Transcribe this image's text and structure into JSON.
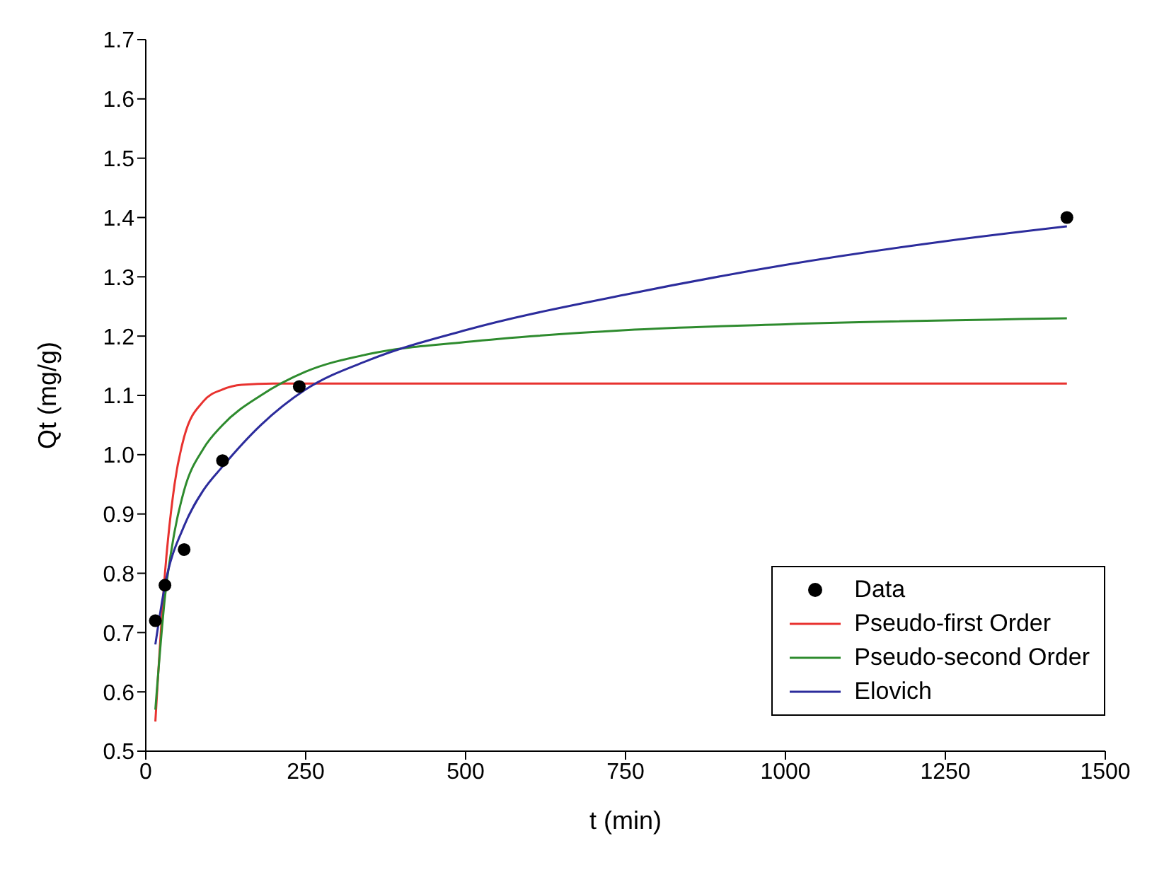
{
  "chart_data": {
    "type": "line",
    "xlabel": "t (min)",
    "ylabel": "Qt (mg/g)",
    "xlim": [
      0,
      1500
    ],
    "xticks": [
      0,
      250,
      500,
      750,
      1000,
      1250,
      1500
    ],
    "ylim": [
      0.5,
      1.7
    ],
    "yticks": [
      {
        "value": 0.5,
        "label": "0.5"
      },
      {
        "value": 0.6,
        "label": "0.6"
      },
      {
        "value": 0.7,
        "label": "0.7"
      },
      {
        "value": 0.8,
        "label": "0.8"
      },
      {
        "value": 0.9,
        "label": "0.9"
      },
      {
        "value": 1.0,
        "label": "1.0"
      },
      {
        "value": 1.1,
        "label": "1.1"
      },
      {
        "value": 1.2,
        "label": "1.2"
      },
      {
        "value": 1.3,
        "label": "1.3"
      },
      {
        "value": 1.4,
        "label": "1.4"
      },
      {
        "value": 1.5,
        "label": "1.5"
      },
      {
        "value": 1.6,
        "label": "1.6"
      },
      {
        "value": 1.7,
        "label": "1.7"
      }
    ],
    "grid": false,
    "legend": "bottom right",
    "series": [
      {
        "name": "Data",
        "type": "scatter",
        "marker": "circle",
        "color": "#000000",
        "x": [
          15,
          30,
          60,
          120,
          240,
          1440
        ],
        "values": [
          0.72,
          0.78,
          0.84,
          0.99,
          1.115,
          1.4
        ]
      },
      {
        "name": "Pseudo-first Order",
        "marker": "none",
        "color": "#e8322f",
        "x": [
          15,
          30,
          45,
          60,
          90,
          120,
          150,
          200,
          500,
          1000,
          1440
        ],
        "values": [
          0.55,
          0.8,
          0.95,
          1.03,
          1.09,
          1.11,
          1.118,
          1.12,
          1.12,
          1.12,
          1.12
        ]
      },
      {
        "name": "Pseudo-second Order",
        "marker": "none",
        "color": "#2e8b2e",
        "x": [
          15,
          30,
          45,
          60,
          90,
          120,
          180,
          250,
          350,
          500,
          750,
          1000,
          1440
        ],
        "values": [
          0.57,
          0.76,
          0.87,
          0.94,
          1.01,
          1.05,
          1.1,
          1.14,
          1.17,
          1.19,
          1.21,
          1.22,
          1.23
        ]
      },
      {
        "name": "Elovich",
        "marker": "none",
        "color": "#2c2c9c",
        "x": [
          15,
          30,
          60,
          90,
          120,
          180,
          250,
          350,
          500,
          750,
          1000,
          1250,
          1440
        ],
        "values": [
          0.68,
          0.78,
          0.88,
          0.94,
          0.98,
          1.05,
          1.11,
          1.16,
          1.21,
          1.27,
          1.32,
          1.36,
          1.385
        ]
      }
    ]
  }
}
